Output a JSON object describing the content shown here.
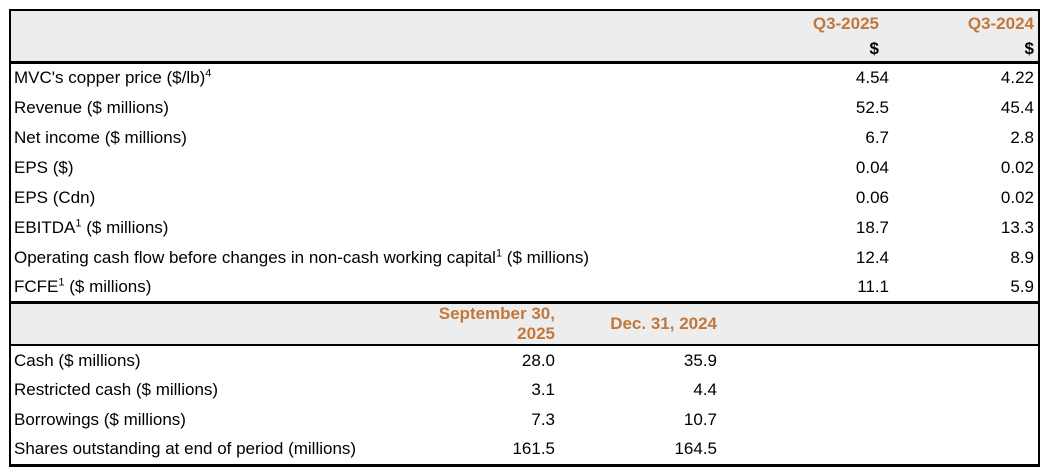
{
  "table": {
    "accent_color": "#C0783C",
    "header_bg": "#EDEDED",
    "section1": {
      "col_headers": [
        "Q3-2025",
        "Q3-2024"
      ],
      "unit_row": [
        "$",
        "$"
      ],
      "rows": [
        {
          "label": [
            {
              "t": "MVC's copper price ($/lb)"
            },
            {
              "t": "4",
              "sup": true
            }
          ],
          "values": [
            "4.54",
            "4.22"
          ]
        },
        {
          "label": [
            {
              "t": "Revenue ($ millions)"
            }
          ],
          "values": [
            "52.5",
            "45.4"
          ]
        },
        {
          "label": [
            {
              "t": "Net income ($ millions)"
            }
          ],
          "values": [
            "6.7",
            "2.8"
          ]
        },
        {
          "label": [
            {
              "t": "EPS ($)"
            }
          ],
          "values": [
            "0.04",
            "0.02"
          ]
        },
        {
          "label": [
            {
              "t": "EPS (Cdn)"
            }
          ],
          "values": [
            "0.06",
            "0.02"
          ]
        },
        {
          "label": [
            {
              "t": "EBITDA"
            },
            {
              "t": "1",
              "sup": true
            },
            {
              "t": " ($ millions)"
            }
          ],
          "values": [
            "18.7",
            "13.3"
          ]
        },
        {
          "label": [
            {
              "t": "Operating cash flow before changes in non-cash working capital"
            },
            {
              "t": "1",
              "sup": true
            },
            {
              "t": " ($ millions)"
            }
          ],
          "values": [
            "12.4",
            "8.9"
          ]
        },
        {
          "label": [
            {
              "t": "FCFE"
            },
            {
              "t": "1",
              "sup": true
            },
            {
              "t": " ($ millions)"
            }
          ],
          "values": [
            "11.1",
            "5.9"
          ]
        }
      ]
    },
    "section2": {
      "col_headers": [
        "September 30, 2025",
        "Dec. 31, 2024"
      ],
      "rows": [
        {
          "label": [
            {
              "t": "Cash ($ millions)"
            }
          ],
          "values": [
            "28.0",
            "35.9"
          ]
        },
        {
          "label": [
            {
              "t": "Restricted cash ($ millions)"
            }
          ],
          "values": [
            "3.1",
            "4.4"
          ]
        },
        {
          "label": [
            {
              "t": "Borrowings ($ millions)"
            }
          ],
          "values": [
            "7.3",
            "10.7"
          ]
        },
        {
          "label": [
            {
              "t": "Shares outstanding at end of period (millions)"
            }
          ],
          "values": [
            "161.5",
            "164.5"
          ]
        }
      ]
    }
  }
}
